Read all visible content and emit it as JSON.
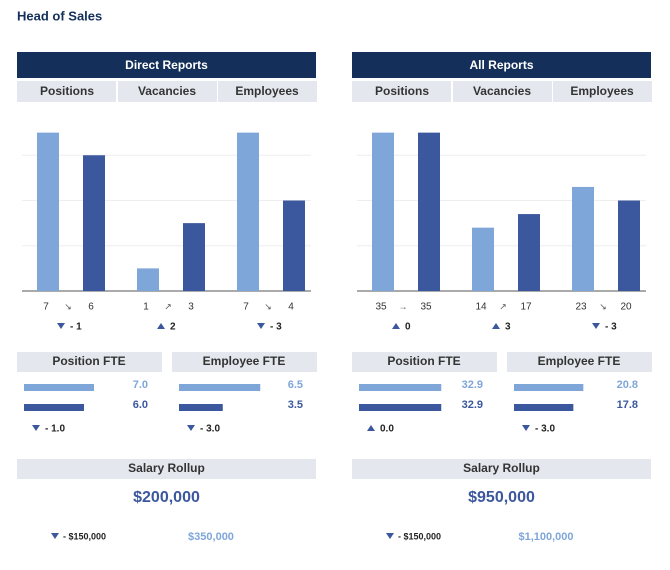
{
  "header": {
    "title": "Head of Sales"
  },
  "panels": [
    {
      "title": "Direct Reports",
      "columns": [
        "Positions",
        "Vacancies",
        "Employees"
      ],
      "chart": {
        "type": "bar",
        "ylim": [
          0,
          8
        ],
        "yticks": [
          0,
          2,
          4,
          6
        ],
        "colors": [
          "#7fa6d9",
          "#3b579d"
        ],
        "groups": [
          {
            "values": [
              7,
              6
            ],
            "trend": "↘",
            "change": "- 1",
            "direction": "down"
          },
          {
            "values": [
              1,
              3
            ],
            "trend": "↗",
            "change": "2",
            "direction": "up"
          },
          {
            "values": [
              7,
              4
            ],
            "trend": "↘",
            "change": "- 3",
            "direction": "down"
          }
        ]
      },
      "fte": [
        {
          "title": "Position FTE",
          "xlim": [
            0,
            10
          ],
          "values": [
            7,
            6
          ],
          "value_labels": [
            "7.0",
            "6.0"
          ],
          "change": "- 1.0",
          "direction": "down"
        },
        {
          "title": "Employee FTE",
          "xlim": [
            0,
            8
          ],
          "values": [
            6.5,
            3.5
          ],
          "value_labels": [
            "6.5",
            "3.5"
          ],
          "change": "- 3.0",
          "direction": "down"
        }
      ],
      "salary": {
        "title": "Salary Rollup",
        "total": "$200,000",
        "change": "- $150,000",
        "direction": "down",
        "target": "$350,000"
      }
    },
    {
      "title": "All Reports",
      "columns": [
        "Positions",
        "Vacancies",
        "Employees"
      ],
      "chart": {
        "type": "bar",
        "ylim": [
          0,
          40
        ],
        "yticks": [
          0,
          10,
          20,
          30
        ],
        "colors": [
          "#7fa6d9",
          "#3b579d"
        ],
        "groups": [
          {
            "values": [
              35,
              35
            ],
            "trend": "→",
            "change": "0",
            "direction": "up"
          },
          {
            "values": [
              14,
              17
            ],
            "trend": "↗",
            "change": "3",
            "direction": "up"
          },
          {
            "values": [
              23,
              20
            ],
            "trend": "↘",
            "change": "- 3",
            "direction": "down"
          }
        ]
      },
      "fte": [
        {
          "title": "Position FTE",
          "xlim": [
            0,
            40
          ],
          "values": [
            32.9,
            32.9
          ],
          "value_labels": [
            "32.9",
            "32.9"
          ],
          "change": "0.0",
          "direction": "up"
        },
        {
          "title": "Employee FTE",
          "xlim": [
            0,
            30
          ],
          "values": [
            20.8,
            17.8
          ],
          "value_labels": [
            "20.8",
            "17.8"
          ],
          "change": "- 3.0",
          "direction": "down"
        }
      ],
      "salary": {
        "title": "Salary Rollup",
        "total": "$950,000",
        "change": "- $150,000",
        "direction": "down",
        "target": "$1,100,000"
      }
    }
  ]
}
